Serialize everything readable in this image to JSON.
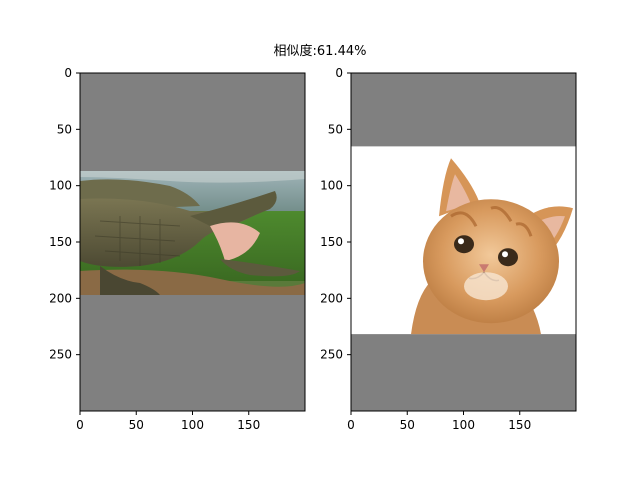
{
  "figure": {
    "suptitle": "相似度:61.44%"
  },
  "chart_data": [
    {
      "type": "image",
      "subject": "crocodile",
      "xlim": [
        0,
        200
      ],
      "ylim": [
        300,
        0
      ],
      "xticks": [
        "0",
        "50",
        "100",
        "150"
      ],
      "yticks": [
        "0",
        "50",
        "100",
        "150",
        "200",
        "250"
      ],
      "image_extent_y": [
        87,
        211
      ],
      "padding_color": "#808080"
    },
    {
      "type": "image",
      "subject": "kitten",
      "xlim": [
        0,
        200
      ],
      "ylim": [
        300,
        0
      ],
      "xticks": [
        "0",
        "50",
        "100",
        "150"
      ],
      "yticks": [
        "0",
        "50",
        "100",
        "150",
        "200",
        "250"
      ],
      "image_extent_y": [
        65,
        233
      ],
      "padding_color": "#808080"
    }
  ]
}
